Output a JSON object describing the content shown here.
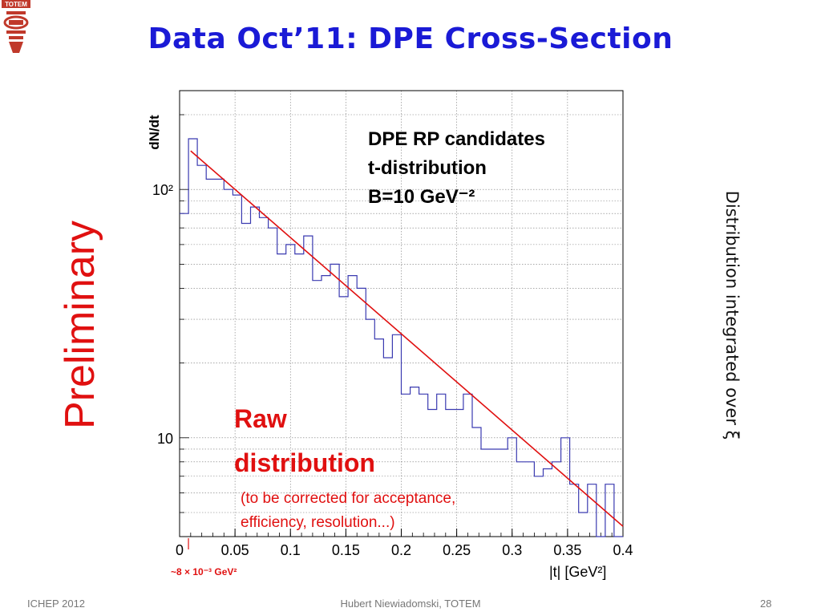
{
  "slide": {
    "title": "Data Oct’11: DPE  Cross-Section",
    "logo_text": "TOTEM",
    "side_label": "Preliminary",
    "side_note": "Distribution integrated over ξ",
    "footer": {
      "left": "ICHEP 2012",
      "center": "Hubert Niewiadomski, TOTEM",
      "right": "28"
    },
    "colors": {
      "title": "#1a1ad6",
      "preliminary": "#e01010",
      "histogram": "#3a3ab0",
      "fit": "#e01010"
    }
  },
  "chart_data": {
    "type": "line",
    "ylabel": "dN/dt",
    "xlabel": "|t| [GeV²]",
    "yscale": "log",
    "xlim": [
      0,
      0.4
    ],
    "ylim": [
      4,
      250
    ],
    "x_ticks": [
      "0",
      "0.05",
      "0.1",
      "0.15",
      "0.2",
      "0.25",
      "0.3",
      "0.35",
      "0.4"
    ],
    "y_ticks": [
      "10",
      "10²"
    ],
    "legend_lines": [
      "DPE RP candidates",
      "t-distribution",
      "B=10 GeV⁻²"
    ],
    "annotation_title_1": "Raw",
    "annotation_title_2": "distribution",
    "annotation_note_1": "(to be corrected for acceptance,",
    "annotation_note_2": "efficiency, resolution...)",
    "threshold_label": "~8 × 10⁻³ GeV²",
    "threshold_x": 0.008,
    "grid": true,
    "series": [
      {
        "type": "histogram",
        "bin_edges": [
          0,
          0.008,
          0.016,
          0.024,
          0.032,
          0.04,
          0.048,
          0.056,
          0.064,
          0.072,
          0.08,
          0.088,
          0.096,
          0.104,
          0.112,
          0.12,
          0.128,
          0.136,
          0.144,
          0.152,
          0.16,
          0.168,
          0.176,
          0.184,
          0.192,
          0.2,
          0.208,
          0.216,
          0.224,
          0.232,
          0.24,
          0.248,
          0.256,
          0.264,
          0.272,
          0.28,
          0.288,
          0.296,
          0.304,
          0.312,
          0.32,
          0.328,
          0.336,
          0.344,
          0.352,
          0.36,
          0.368,
          0.376,
          0.384,
          0.392,
          0.4
        ],
        "values": [
          80,
          160,
          125,
          110,
          110,
          100,
          95,
          73,
          85,
          77,
          70,
          55,
          60,
          55,
          65,
          43,
          45,
          50,
          37,
          45,
          40,
          30,
          25,
          21,
          26,
          15,
          16,
          15,
          13,
          15,
          13,
          13,
          15,
          11,
          9,
          9,
          9,
          10,
          8,
          8,
          7,
          7.5,
          8,
          10,
          6.5,
          5,
          6.5,
          4,
          6.5,
          4
        ]
      },
      {
        "type": "fit",
        "x": [
          0.01,
          0.4
        ],
        "y": [
          143,
          4.4
        ]
      }
    ]
  }
}
